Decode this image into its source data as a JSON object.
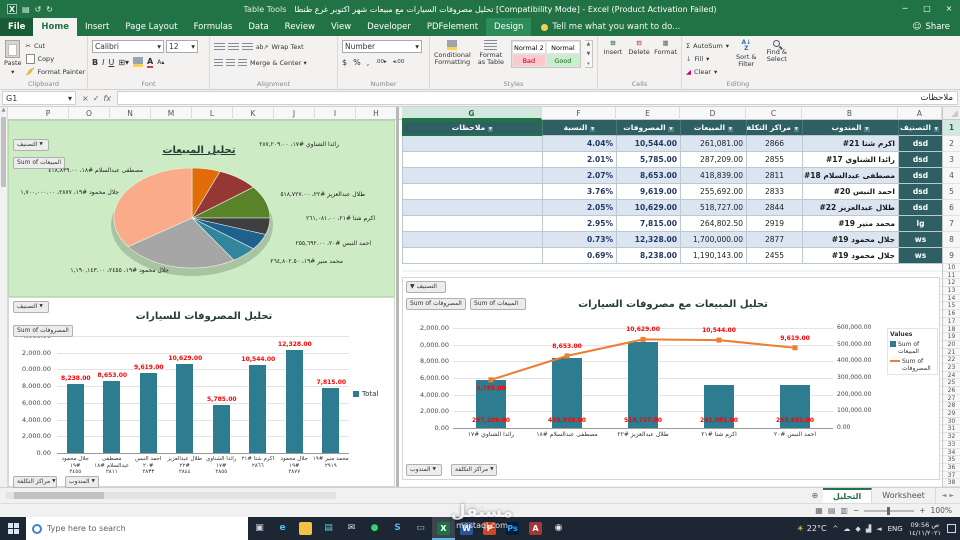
{
  "titlebar": {
    "table_tools": "Table Tools",
    "title": "تحليل مصروفات السيارات مع مبيعات شهر اكتوبر غرع طنطا  [Compatibility Mode] - Excel (Product Activation Failed)",
    "controls": {
      "min": "─",
      "max": "□",
      "close": "×"
    }
  },
  "ribbon": {
    "file": "File",
    "tabs": [
      "Home",
      "Insert",
      "Page Layout",
      "Formulas",
      "Data",
      "Review",
      "View",
      "Developer",
      "PDFelement",
      "Design"
    ],
    "active_tab": "Home",
    "contextual_tab": "Design",
    "tell_me": "Tell me what you want to do...",
    "share": "Share",
    "clipboard": {
      "label": "Clipboard",
      "paste": "Paste",
      "cut": "Cut",
      "copy": "Copy",
      "painter": "Format Painter"
    },
    "font": {
      "label": "Font",
      "name": "Calibri",
      "size": "12",
      "bold": "B",
      "italic": "I",
      "underline": "U"
    },
    "alignment": {
      "label": "Alignment",
      "wrap": "Wrap Text",
      "merge": "Merge & Center"
    },
    "number": {
      "label": "Number",
      "format": "Number",
      "percent": "%",
      "comma": ",",
      "currency": "$"
    },
    "styles": {
      "label": "Styles",
      "conditional": "Conditional Formatting",
      "format_table": "Format as Table",
      "gallery": [
        {
          "name": "Normal 2",
          "bg": "#ffffff",
          "color": "#000000"
        },
        {
          "name": "Normal",
          "bg": "#ffffff",
          "color": "#000000"
        },
        {
          "name": "Bad",
          "bg": "#ffc7ce",
          "color": "#9c0006"
        },
        {
          "name": "Good",
          "bg": "#c6efce",
          "color": "#276221"
        }
      ]
    },
    "cells": {
      "label": "Cells",
      "insert": "Insert",
      "del": "Delete",
      "format": "Format"
    },
    "editing": {
      "label": "Editing",
      "autosum": "AutoSum",
      "fill": "Fill",
      "clear": "Clear",
      "sort": "Sort & Filter",
      "find": "Find & Select"
    }
  },
  "formula_bar": {
    "name_box": "G1",
    "value": "ملاحظات"
  },
  "sheet": {
    "left_col_letters": [
      "P",
      "O",
      "N",
      "M",
      "L",
      "K",
      "J",
      "I",
      "H"
    ],
    "right_col_letters": [
      "G",
      "F",
      "E",
      "D",
      "C",
      "B",
      "A"
    ],
    "active_col": "G",
    "row_numbers": [
      1,
      2,
      3,
      4,
      5,
      6,
      7,
      8,
      9,
      10,
      11,
      12,
      13,
      14,
      15,
      16,
      17,
      18,
      19,
      20,
      21,
      22,
      23,
      24,
      25,
      26,
      27,
      28,
      29,
      30,
      31,
      32,
      33,
      34,
      35,
      36,
      37,
      38
    ]
  },
  "table": {
    "headers": [
      "التصنيف",
      "المندوب",
      "مراكز التكلفة",
      "المبيعات",
      "المصروفات",
      "النسبة",
      "ملاحظات"
    ],
    "rows": [
      [
        "dsd",
        "اكرم شتا ‎#21",
        "2866",
        "261,081.00",
        "10,544.00",
        "4.04%",
        ""
      ],
      [
        "dsd",
        "رائدا الشناوي ‎#17",
        "2855",
        "287,209.00",
        "5,785.00",
        "2.01%",
        ""
      ],
      [
        "dsd",
        "مصطفى عبدالسلام ‎#18",
        "2811",
        "418,839.00",
        "8,653.00",
        "2.07%",
        ""
      ],
      [
        "dsd",
        "احمد النبس ‎#20",
        "2833",
        "255,692.00",
        "9,619.00",
        "3.76%",
        ""
      ],
      [
        "dsd",
        "طلال عبدالعزيز ‎#22",
        "2844",
        "518,727.00",
        "10,629.00",
        "2.05%",
        ""
      ],
      [
        "lg",
        "محمد منير ‎#19",
        "2919",
        "264,802.50",
        "7,815.00",
        "2.95%",
        ""
      ],
      [
        "ws",
        "جلال محمود ‎#19",
        "2877",
        "1,700,000.00",
        "12,328.00",
        "0.73%",
        ""
      ],
      [
        "ws",
        "جلال محمود ‎#19",
        "2455",
        "1,190,143.00",
        "8,238.00",
        "0.69%",
        ""
      ]
    ]
  },
  "chart_data": [
    {
      "type": "pie",
      "title": "تحليل المبيعات",
      "filter_button": "التصنيف",
      "value_button": "Sum of المبيعات",
      "points": [
        {
          "label": "رائدا الشناوي #١٧",
          "value": 287209,
          "value_label": "٢٨٧,٢٠٩.٠٠",
          "color": "#e36c0a"
        },
        {
          "label": "مصطفى عبدالسلام #١٨",
          "value": 418839,
          "value_label": "٤١٨,٨٣٩.٠٠",
          "color": "#953735"
        },
        {
          "label": "طلال عبدالعزيز #٢٢",
          "value": 518727,
          "value_label": "٥١٨,٧٢٧.٠٠",
          "color": "#5a8229"
        },
        {
          "label": "اكرم شتا #٢١",
          "value": 261081,
          "value_label": "٢٦١,٠٨١.٠٠",
          "color": "#3f3f3f"
        },
        {
          "label": "احمد النبس #٢٠",
          "value": 255692,
          "value_label": "٢٥٥,٦٩٢.٠٠",
          "color": "#1f618d"
        },
        {
          "label": "محمد منير #١٩",
          "value": 264802.5,
          "value_label": "٢٦٤,٨٠٢.٥٠",
          "color": "#31859c"
        },
        {
          "label": "جلال محمود #١٩، ٢٤٥٥",
          "value": 1190143,
          "value_label": "١,١٩٠,١٤٣.٠٠",
          "color": "#a6a6a6"
        },
        {
          "label": "جلال محمود #١٩، ٢٨٧٧",
          "value": 1700000,
          "value_label": "١,٧٠٠,٠٠٠.٠٠",
          "color": "#f9ab8a"
        }
      ]
    },
    {
      "type": "bar",
      "title": "تحليل المصروفات للسيارات",
      "filter_button": "التصنيف",
      "value_button": "Sum of المصروفات",
      "axis_buttons": [
        "مراكز التكلفة",
        "المندوب"
      ],
      "categories": [
        {
          "name": "جلال محمود #١٩",
          "cc": "٢٤٥٥"
        },
        {
          "name": "مصطفى عبدالسلام #١٨",
          "cc": "٢٨١١"
        },
        {
          "name": "احمد النبس #٢٠",
          "cc": "٢٨٣٣"
        },
        {
          "name": "طلال عبدالعزيز #٢٢",
          "cc": "٢٨٤٤"
        },
        {
          "name": "رائدا الشناوي #١٧",
          "cc": "٢٨٥٥"
        },
        {
          "name": "اكرم شتا #٢١",
          "cc": "٢٨٦٦"
        },
        {
          "name": "جلال محمود #١٩",
          "cc": "٢٨٧٧"
        },
        {
          "name": "محمد منير #١٩",
          "cc": "٢٩١٩"
        }
      ],
      "values": [
        8238,
        8653,
        9619,
        10629,
        5785,
        10544,
        12328,
        7815
      ],
      "data_labels": [
        "8,238.00",
        "8,653.00",
        "9,619.00",
        "10,629.00",
        "5,785.00",
        "10,544.00",
        "12,328.00",
        "7,815.00"
      ],
      "ylim": [
        0,
        14000
      ],
      "y_ticks": [
        "14,000.00",
        "12,000.00",
        "10,000.00",
        "8,000.00",
        "6,000.00",
        "4,000.00",
        "2,000.00",
        "0.00"
      ],
      "legend": "Total",
      "bar_color": "#2e7c8f"
    },
    {
      "type": "combo",
      "title": "تحليل المبيعات مع مصروفات السيارات",
      "filter_button": "التصنيف",
      "value_buttons": [
        "Sum of المصروفات",
        "Sum of المبيعات"
      ],
      "axis_buttons": [
        "المندوب",
        "مراكز التكلفة"
      ],
      "categories": [
        "رائدا الشناوي #١٧",
        "مصطفى عبدالسلام #١٨",
        "طلال عبدالعزيز #٢٢",
        "اكرم شتا #٢١",
        "احمد النبس #٢٠"
      ],
      "bar_series": {
        "name": "Sum of المبيعات",
        "values": [
          287209,
          418839,
          518727,
          261081,
          255692
        ],
        "labels": [
          "287,209.00",
          "418,839.00",
          "518,727.00",
          "261,081.00",
          "255,692.00"
        ],
        "color": "#2e7c8f",
        "axis": "right"
      },
      "line_series": {
        "name": "Sum of المصروفات",
        "values": [
          5785,
          8653,
          10629,
          10544,
          9619
        ],
        "labels": [
          "5,785.00",
          "8,653.00",
          "10,629.00",
          "10,544.00",
          "9,619.00"
        ],
        "color": "#ed7d31",
        "axis": "left"
      },
      "left_ylim": [
        0,
        12000
      ],
      "right_ylim": [
        0,
        600000
      ],
      "left_ticks": [
        "12,000.00",
        "10,000.00",
        "8,000.00",
        "6,000.00",
        "4,000.00",
        "2,000.00",
        "0.00"
      ],
      "right_ticks": [
        "600,000.00",
        "500,000.00",
        "400,000.00",
        "300,000.00",
        "200,000.00",
        "100,000.00",
        "0.00"
      ],
      "legend_title": "Values"
    }
  ],
  "sheet_tabs": {
    "tabs": [
      "التحليل",
      "Worksheet"
    ],
    "active": "التحليل"
  },
  "status_bar": {
    "zoom": "100%"
  },
  "taskbar": {
    "search_placeholder": "Type here to search",
    "apps": [
      {
        "name": "task-view",
        "glyph": "▣",
        "fg": "#cfd8e0"
      },
      {
        "name": "edge",
        "glyph": "e",
        "fg": "#4cc2ff"
      },
      {
        "name": "file-explorer",
        "glyph": "",
        "bg": "#f3c244"
      },
      {
        "name": "store",
        "glyph": "▤",
        "fg": "#5ec8e5"
      },
      {
        "name": "mail",
        "glyph": "✉",
        "fg": "#cfe3f5"
      },
      {
        "name": "whatsapp",
        "glyph": "●",
        "fg": "#38d16a"
      },
      {
        "name": "skype",
        "glyph": "S",
        "fg": "#59b0e8"
      },
      {
        "name": "monitor",
        "glyph": "▭",
        "fg": "#aab6c0"
      },
      {
        "name": "excel",
        "glyph": "X",
        "bg": "#1e7145",
        "fg": "#ffffff",
        "active": true
      },
      {
        "name": "word",
        "glyph": "W",
        "bg": "#2b579a",
        "fg": "#ffffff"
      },
      {
        "name": "powerpoint",
        "glyph": "P",
        "bg": "#d24726",
        "fg": "#ffffff"
      },
      {
        "name": "photoshop",
        "glyph": "Ps",
        "bg": "#001e36",
        "fg": "#31a8ff"
      },
      {
        "name": "access",
        "glyph": "A",
        "bg": "#a4373a",
        "fg": "#ffffff"
      },
      {
        "name": "chrome",
        "glyph": "◉",
        "fg": "#e8eaed"
      }
    ],
    "weather": "22°C",
    "tray_icons": [
      {
        "name": "chevron-up",
        "glyph": "^"
      },
      {
        "name": "onedrive-cloud",
        "glyph": "☁"
      },
      {
        "name": "defender-shield",
        "glyph": "◆"
      },
      {
        "name": "network",
        "glyph": "▟"
      },
      {
        "name": "volume",
        "glyph": "◄"
      }
    ],
    "tray_lang": "ENG",
    "time": "09:56 ص",
    "date": "١٤/١١/٢٠٢١"
  },
  "watermark": {
    "title": "مستقل",
    "domain": "mostaql.com"
  }
}
